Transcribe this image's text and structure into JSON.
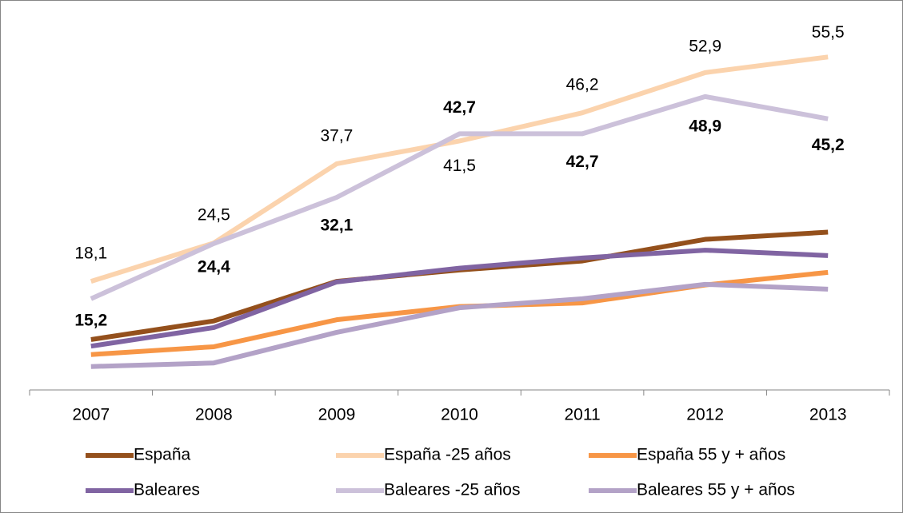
{
  "chart_data": {
    "type": "line",
    "categories": [
      "2007",
      "2008",
      "2009",
      "2010",
      "2011",
      "2012",
      "2013"
    ],
    "ylim": [
      0,
      65
    ],
    "series": [
      {
        "name": "España",
        "color": "#94501c",
        "values": [
          8.4,
          11.5,
          18.1,
          20.0,
          21.5,
          25.1,
          26.3
        ]
      },
      {
        "name": "España -25 años",
        "color": "#fbd3ad",
        "values": [
          18.1,
          24.5,
          37.7,
          41.5,
          46.2,
          52.9,
          55.5
        ],
        "value_labels": [
          "18,1",
          "24,5",
          "37,7",
          "41,5",
          "46,2",
          "52,9",
          "55,5"
        ]
      },
      {
        "name": "España 55 y + años",
        "color": "#f79646",
        "values": [
          5.9,
          7.2,
          11.7,
          13.9,
          14.5,
          17.5,
          19.6
        ]
      },
      {
        "name": "Baleares",
        "color": "#8064a2",
        "values": [
          7.3,
          10.4,
          18.0,
          20.3,
          22.0,
          23.3,
          22.4
        ]
      },
      {
        "name": "Baleares -25 años",
        "color": "#ccc1da",
        "values": [
          15.2,
          24.4,
          32.1,
          42.7,
          42.7,
          48.9,
          45.2
        ],
        "value_labels": [
          "15,2",
          "24,4",
          "32,1",
          "42,7",
          "42,7",
          "48,9",
          "45,2"
        ]
      },
      {
        "name": "Baleares 55 y + años",
        "color": "#b3a2c7",
        "values": [
          3.9,
          4.5,
          9.6,
          13.7,
          15.2,
          17.6,
          16.8
        ]
      }
    ]
  }
}
